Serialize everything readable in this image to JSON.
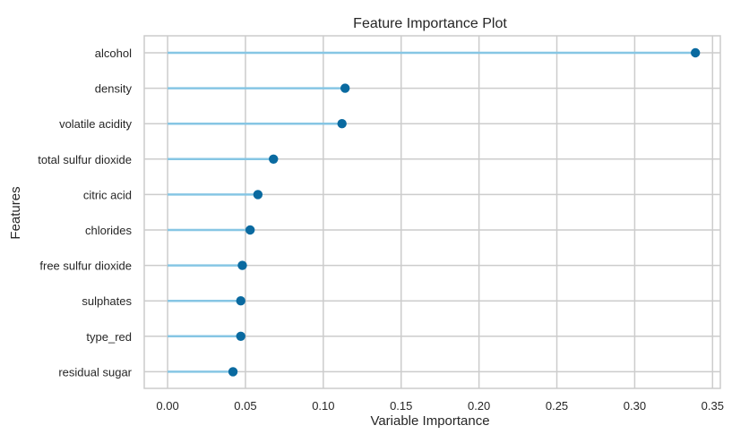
{
  "chart_data": {
    "type": "lollipop",
    "title": "Feature Importance Plot",
    "xlabel": "Variable Importance",
    "ylabel": "Features",
    "xlim": [
      -0.015,
      0.355
    ],
    "xticks": [
      0.0,
      0.05,
      0.1,
      0.15,
      0.2,
      0.25,
      0.3,
      0.35
    ],
    "xtick_labels": [
      "0.00",
      "0.05",
      "0.10",
      "0.15",
      "0.20",
      "0.25",
      "0.30",
      "0.35"
    ],
    "grid": true,
    "categories": [
      "alcohol",
      "density",
      "volatile acidity",
      "total sulfur dioxide",
      "citric acid",
      "chlorides",
      "free sulfur dioxide",
      "sulphates",
      "type_red",
      "residual sugar"
    ],
    "values": [
      0.339,
      0.114,
      0.112,
      0.068,
      0.058,
      0.053,
      0.048,
      0.047,
      0.047,
      0.042
    ],
    "colors": {
      "stem": "#86c6e4",
      "marker": "#0a6aa0",
      "grid": "#cccccc"
    }
  }
}
